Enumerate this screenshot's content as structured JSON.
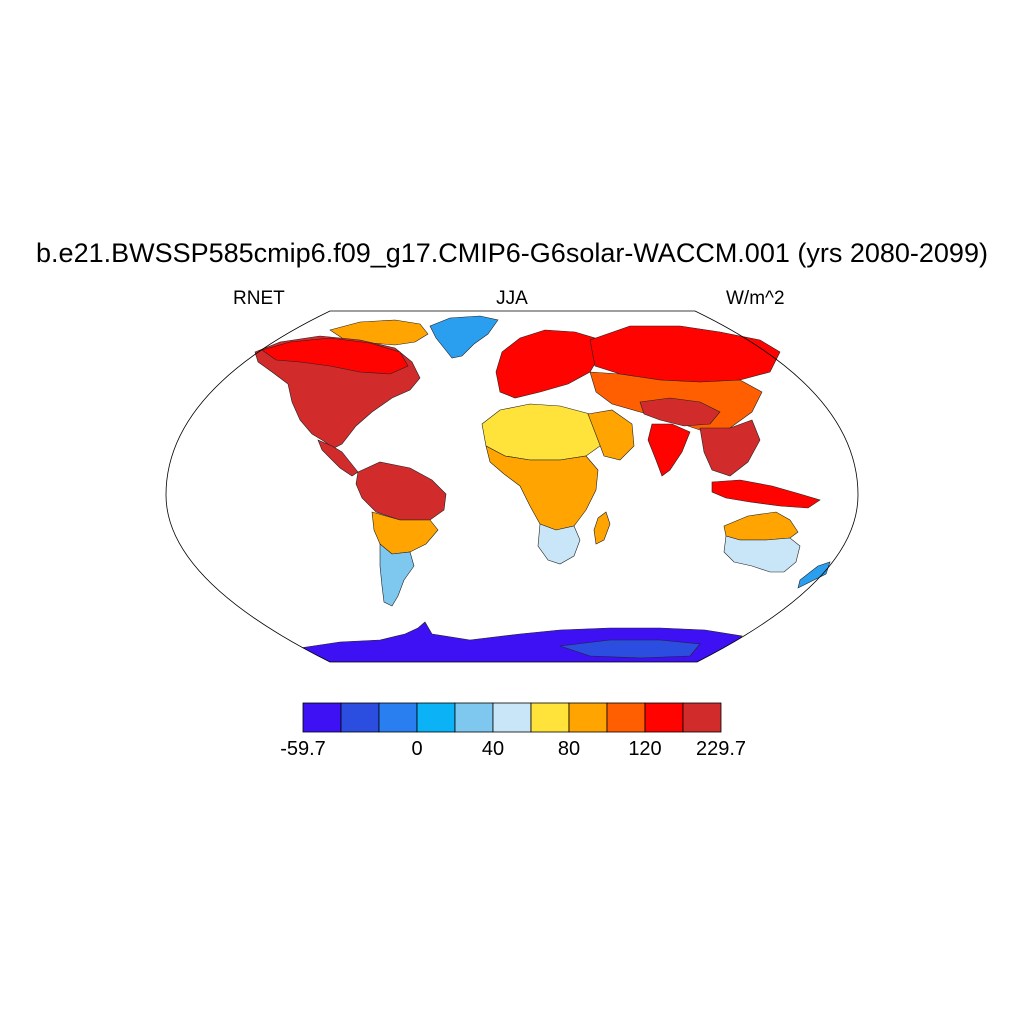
{
  "title": "b.e21.BWSSP585cmip6.f09_g17.CMIP6-G6solar-WACCM.001 (yrs 2080-2099)",
  "left_string": "RNET",
  "center_string": "JJA",
  "right_string": "W/m^2",
  "colorbar": {
    "colors": [
      "#3e11f5",
      "#2b4de0",
      "#2a7ff0",
      "#0bb2f5",
      "#7ec8ef",
      "#c8e6f7",
      "#ffe23a",
      "#ffa400",
      "#ff5f00",
      "#ff0300",
      "#d22b2b"
    ],
    "labels": [
      "-59.7",
      "0",
      "40",
      "80",
      "120",
      "229.7"
    ],
    "label_boundary_index": [
      0,
      3,
      5,
      7,
      9,
      11
    ]
  },
  "map": {
    "projection": "Robinson",
    "land_color": "#d22b2b",
    "ocean_color": "#ffffff",
    "regions": [
      {
        "name": "north-america",
        "color": "#d22b2b"
      },
      {
        "name": "north-america-boreal",
        "color": "#ff0300"
      },
      {
        "name": "arctic-canada",
        "color": "#ffa400"
      },
      {
        "name": "greenland",
        "color": "#2a9ff0"
      },
      {
        "name": "central-america",
        "color": "#d22b2b"
      },
      {
        "name": "south-america-north",
        "color": "#d22b2b"
      },
      {
        "name": "south-america-mid",
        "color": "#ffa400"
      },
      {
        "name": "south-america-south",
        "color": "#7ec8ef"
      },
      {
        "name": "europe",
        "color": "#ff0300"
      },
      {
        "name": "siberia",
        "color": "#ff0300"
      },
      {
        "name": "asia-central",
        "color": "#ff5f00"
      },
      {
        "name": "tibet",
        "color": "#d22b2b"
      },
      {
        "name": "sahara",
        "color": "#ffe23a"
      },
      {
        "name": "arabia",
        "color": "#ffa400"
      },
      {
        "name": "africa-central",
        "color": "#ffa400"
      },
      {
        "name": "africa-south",
        "color": "#c8e6f7"
      },
      {
        "name": "india",
        "color": "#ff0300"
      },
      {
        "name": "southeast-asia",
        "color": "#d22b2b"
      },
      {
        "name": "indonesia",
        "color": "#ff0300"
      },
      {
        "name": "australia-north",
        "color": "#ffa400"
      },
      {
        "name": "australia-south",
        "color": "#c8e6f7"
      },
      {
        "name": "madagascar",
        "color": "#ffa400"
      },
      {
        "name": "new-zealand",
        "color": "#2a9ff0"
      },
      {
        "name": "antarctica",
        "color": "#3e11f5"
      },
      {
        "name": "antarctica-east",
        "color": "#2b4de0"
      }
    ]
  }
}
